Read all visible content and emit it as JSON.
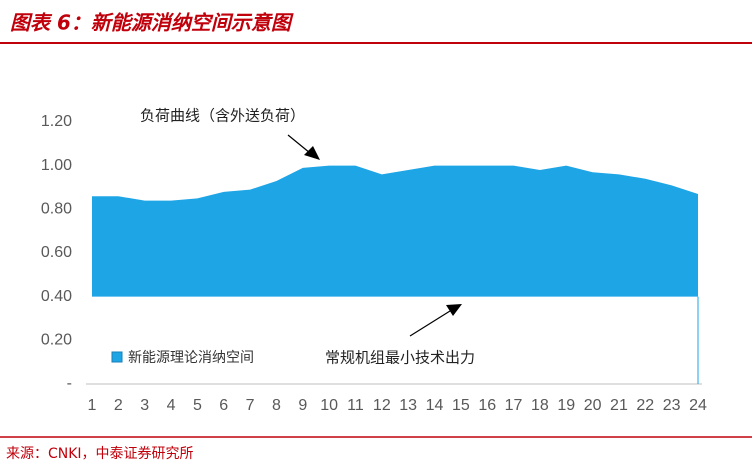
{
  "chart_data": {
    "type": "area",
    "title": "图表 6：新能源消纳空间示意图",
    "source": "来源：CNKI，中泰证券研究所",
    "annotations": [
      "负荷曲线（含外送负荷）",
      "常规机组最小技术出力"
    ],
    "x": [
      1,
      2,
      3,
      4,
      5,
      6,
      7,
      8,
      9,
      10,
      11,
      12,
      13,
      14,
      15,
      16,
      17,
      18,
      19,
      20,
      21,
      22,
      23,
      24
    ],
    "xlim": [
      1,
      24
    ],
    "series": [
      {
        "name": "新能源理论消纳空间",
        "color": "#1ea5e6",
        "values": [
          0.86,
          0.86,
          0.84,
          0.84,
          0.85,
          0.88,
          0.89,
          0.93,
          0.99,
          1.0,
          1.0,
          0.96,
          0.98,
          1.0,
          1.0,
          1.0,
          1.0,
          0.98,
          1.0,
          0.97,
          0.96,
          0.94,
          0.91,
          0.87
        ],
        "baseline": [
          0.4,
          0.4,
          0.4,
          0.4,
          0.4,
          0.4,
          0.4,
          0.4,
          0.4,
          0.4,
          0.4,
          0.4,
          0.4,
          0.4,
          0.4,
          0.4,
          0.4,
          0.4,
          0.4,
          0.4,
          0.4,
          0.4,
          0.4,
          0.4
        ]
      }
    ],
    "ylim": [
      0,
      1.2
    ],
    "yticks": [
      {
        "value": 0,
        "label": "-"
      },
      {
        "value": 0.2,
        "label": "0.20"
      },
      {
        "value": 0.4,
        "label": "0.40"
      },
      {
        "value": 0.6,
        "label": "0.60"
      },
      {
        "value": 0.8,
        "label": "0.80"
      },
      {
        "value": 1.0,
        "label": "1.00"
      },
      {
        "value": 1.2,
        "label": "1.20"
      }
    ],
    "legend": "bottom-left"
  }
}
